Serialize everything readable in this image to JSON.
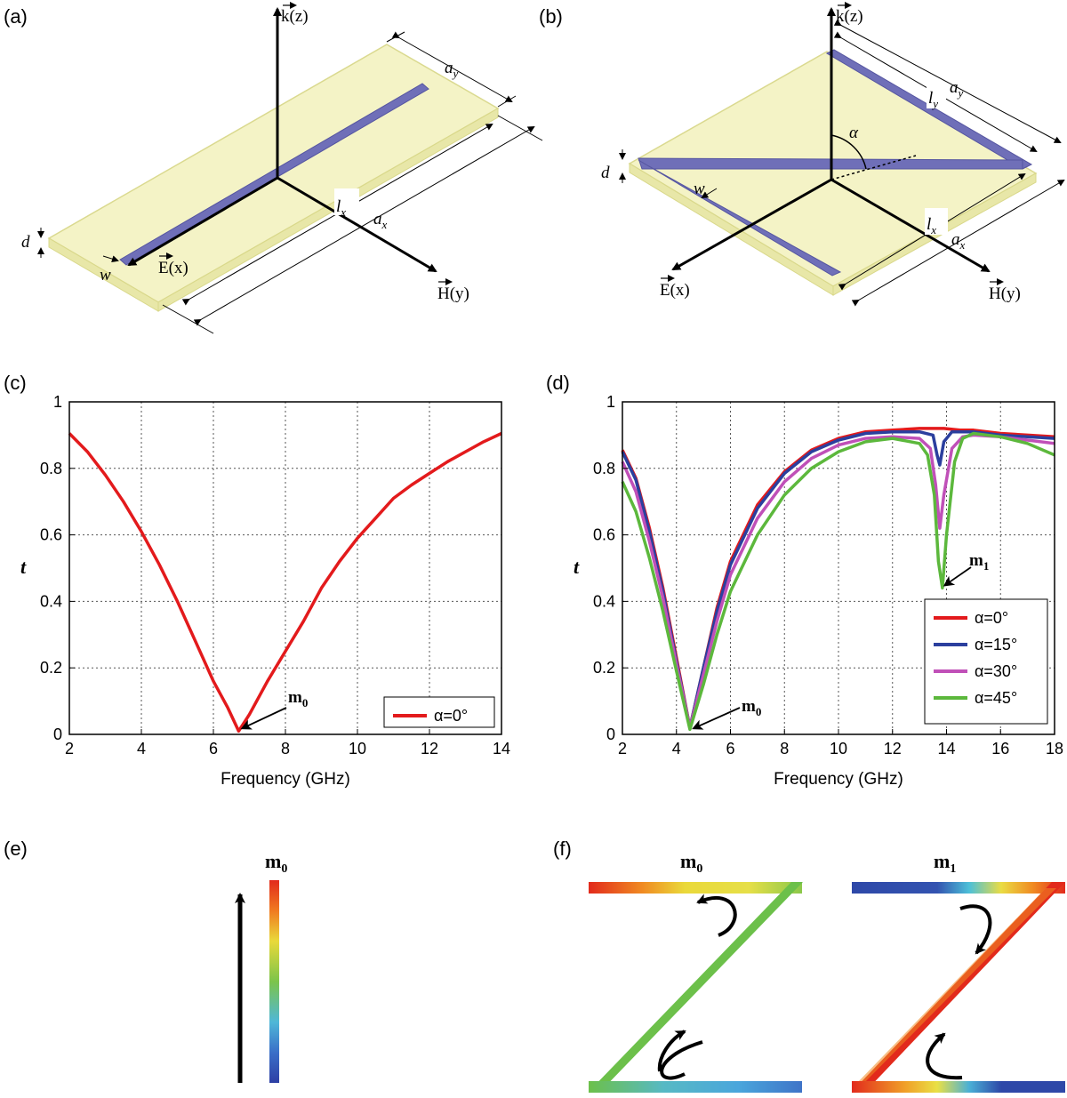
{
  "panels": {
    "a": {
      "label": "(a)"
    },
    "b": {
      "label": "(b)"
    },
    "c": {
      "label": "(c)"
    },
    "d": {
      "label": "(d)"
    },
    "e": {
      "label": "(e)"
    },
    "f": {
      "label": "(f)"
    }
  },
  "schematic": {
    "k_axis": "k(z)",
    "e_axis": "E(x)",
    "h_axis": "H(y)",
    "ax": "a",
    "ax_sub": "x",
    "ay": "a",
    "ay_sub": "y",
    "lx": "l",
    "lx_sub": "x",
    "ly": "l",
    "ly_sub": "y",
    "d": "d",
    "w": "w",
    "alpha": "α"
  },
  "modes": {
    "m0": "m",
    "m0_sub": "0",
    "m1": "m",
    "m1_sub": "1"
  },
  "chart_data": [
    {
      "panel": "c",
      "type": "line",
      "xlabel": "Frequency (GHz)",
      "ylabel": "t",
      "xlim": [
        2,
        14
      ],
      "ylim": [
        0,
        1
      ],
      "xticks": [
        2,
        4,
        6,
        8,
        10,
        12,
        14
      ],
      "yticks": [
        0,
        0.2,
        0.4,
        0.6,
        0.8,
        1
      ],
      "ytick_labels": [
        "0",
        "0.2",
        "0.4",
        "0.6",
        "0.8",
        "1"
      ],
      "grid": true,
      "legend": "bottom-right",
      "annotations": [
        {
          "text": "m0",
          "x": 6.7,
          "y": 0.01
        }
      ],
      "series": [
        {
          "name": "α=0°",
          "color": "#e31a1c",
          "x": [
            2,
            2.5,
            3,
            3.5,
            4,
            4.5,
            5,
            5.5,
            6,
            6.4,
            6.7,
            7,
            7.5,
            8,
            8.5,
            9,
            9.5,
            10,
            10.5,
            11,
            11.5,
            12,
            12.5,
            13,
            13.5,
            14
          ],
          "y": [
            0.905,
            0.85,
            0.78,
            0.7,
            0.61,
            0.51,
            0.4,
            0.28,
            0.16,
            0.08,
            0.01,
            0.06,
            0.16,
            0.25,
            0.34,
            0.44,
            0.52,
            0.59,
            0.65,
            0.71,
            0.75,
            0.785,
            0.82,
            0.85,
            0.88,
            0.905
          ]
        }
      ]
    },
    {
      "panel": "d",
      "type": "line",
      "xlabel": "Frequency (GHz)",
      "ylabel": "t",
      "xlim": [
        2,
        18
      ],
      "ylim": [
        0,
        1
      ],
      "xticks": [
        2,
        4,
        6,
        8,
        10,
        12,
        14,
        16,
        18
      ],
      "yticks": [
        0,
        0.2,
        0.4,
        0.6,
        0.8,
        1
      ],
      "ytick_labels": [
        "0",
        "0.2",
        "0.4",
        "0.6",
        "0.8",
        "1"
      ],
      "grid": true,
      "legend": "bottom-right",
      "annotations": [
        {
          "text": "m0",
          "x": 4.5,
          "y": 0.01
        },
        {
          "text": "m1",
          "x": 13.8,
          "y": 0.44
        }
      ],
      "series": [
        {
          "name": "α=0°",
          "color": "#e31a1c",
          "x": [
            2,
            2.5,
            3,
            3.5,
            4,
            4.5,
            5,
            5.5,
            6,
            7,
            8,
            9,
            10,
            11,
            12,
            13,
            13.5,
            13.7,
            13.9,
            14.5,
            15,
            16,
            17,
            18
          ],
          "y": [
            0.855,
            0.77,
            0.62,
            0.44,
            0.23,
            0.02,
            0.2,
            0.38,
            0.52,
            0.69,
            0.79,
            0.855,
            0.89,
            0.91,
            0.915,
            0.92,
            0.92,
            0.92,
            0.92,
            0.915,
            0.915,
            0.905,
            0.9,
            0.895
          ]
        },
        {
          "name": "α=15°",
          "color": "#2b3f9e",
          "x": [
            2,
            2.5,
            3,
            3.5,
            4,
            4.5,
            5,
            5.5,
            6,
            7,
            8,
            9,
            10,
            11,
            12,
            13,
            13.5,
            13.65,
            13.75,
            13.9,
            14.2,
            15,
            16,
            17,
            18
          ],
          "y": [
            0.85,
            0.765,
            0.61,
            0.43,
            0.22,
            0.02,
            0.2,
            0.37,
            0.51,
            0.68,
            0.785,
            0.85,
            0.885,
            0.905,
            0.91,
            0.91,
            0.9,
            0.84,
            0.81,
            0.88,
            0.91,
            0.91,
            0.9,
            0.895,
            0.89
          ]
        },
        {
          "name": "α=30°",
          "color": "#c050b8",
          "x": [
            2,
            2.5,
            3,
            3.5,
            4,
            4.5,
            5,
            5.5,
            6,
            7,
            8,
            9,
            10,
            11,
            12,
            13,
            13.4,
            13.6,
            13.75,
            13.9,
            14.2,
            14.6,
            15,
            16,
            17,
            18
          ],
          "y": [
            0.82,
            0.73,
            0.58,
            0.41,
            0.21,
            0.02,
            0.18,
            0.34,
            0.48,
            0.65,
            0.76,
            0.83,
            0.87,
            0.89,
            0.895,
            0.89,
            0.86,
            0.75,
            0.62,
            0.72,
            0.86,
            0.895,
            0.9,
            0.895,
            0.885,
            0.875
          ]
        },
        {
          "name": "α=45°",
          "color": "#5cb83c",
          "x": [
            2,
            2.5,
            3,
            3.5,
            4,
            4.5,
            5,
            5.5,
            6,
            7,
            8,
            9,
            10,
            11,
            12,
            13,
            13.3,
            13.55,
            13.7,
            13.85,
            14,
            14.3,
            14.6,
            15,
            16,
            17,
            18
          ],
          "y": [
            0.76,
            0.67,
            0.53,
            0.37,
            0.19,
            0.015,
            0.15,
            0.3,
            0.43,
            0.6,
            0.72,
            0.8,
            0.85,
            0.88,
            0.89,
            0.875,
            0.84,
            0.72,
            0.52,
            0.44,
            0.6,
            0.82,
            0.89,
            0.905,
            0.895,
            0.875,
            0.84
          ]
        }
      ]
    }
  ]
}
